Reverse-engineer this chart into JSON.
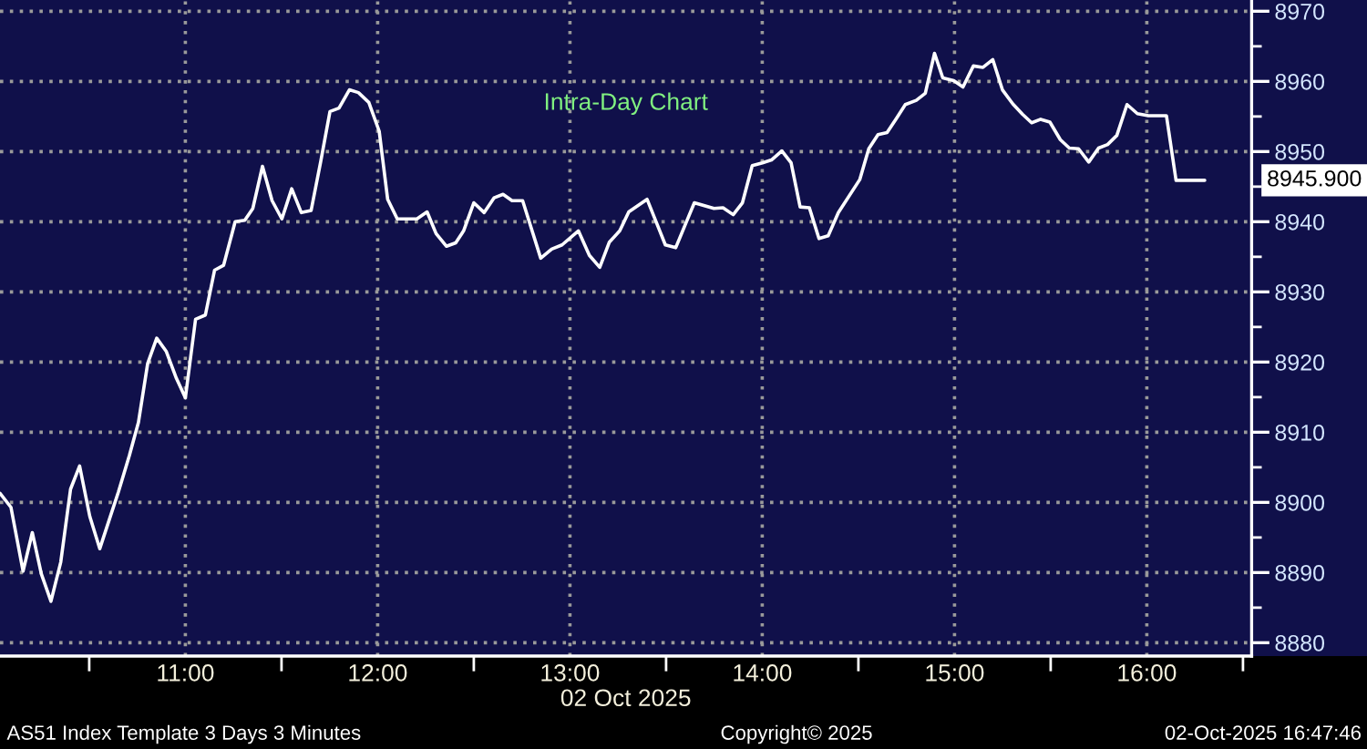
{
  "chart_data": {
    "type": "line",
    "title": "Intra-Day Chart",
    "xlabel": "02 Oct 2025",
    "x": [
      10.036,
      10.093,
      10.156,
      10.204,
      10.251,
      10.301,
      10.352,
      10.403,
      10.45,
      10.503,
      10.555,
      10.605,
      10.652,
      10.709,
      10.756,
      10.804,
      10.851,
      10.901,
      10.953,
      11.0,
      11.053,
      11.104,
      11.152,
      11.199,
      11.259,
      11.309,
      11.351,
      11.401,
      11.451,
      11.502,
      11.553,
      11.603,
      11.654,
      11.704,
      11.752,
      11.799,
      11.853,
      11.9,
      11.954,
      12.008,
      12.052,
      12.102,
      12.204,
      12.257,
      12.304,
      12.358,
      12.406,
      12.447,
      12.5,
      12.554,
      12.605,
      12.652,
      12.699,
      12.754,
      12.848,
      12.905,
      12.959,
      13.044,
      13.101,
      13.155,
      13.205,
      13.259,
      13.306,
      13.401,
      13.448,
      13.496,
      13.55,
      13.6,
      13.647,
      13.749,
      13.796,
      13.849,
      13.897,
      13.948,
      14.001,
      14.048,
      14.102,
      14.15,
      14.197,
      14.245,
      14.295,
      14.343,
      14.396,
      14.507,
      14.554,
      14.602,
      14.649,
      14.697,
      14.744,
      14.801,
      14.848,
      14.896,
      14.939,
      14.996,
      15.044,
      15.098,
      15.148,
      15.199,
      15.249,
      15.303,
      15.354,
      15.401,
      15.448,
      15.496,
      15.55,
      15.597,
      15.645,
      15.698,
      15.749,
      15.796,
      15.844,
      15.897,
      15.951,
      16.008,
      16.102,
      16.152,
      16.301
    ],
    "values": [
      8901.3,
      8899.3,
      8890.2,
      8895.7,
      8889.8,
      8885.9,
      8891.5,
      8901.9,
      8905.2,
      8898.0,
      8893.4,
      8897.6,
      8901.5,
      8906.7,
      8911.4,
      8919.8,
      8923.4,
      8921.5,
      8917.7,
      8914.9,
      8926.1,
      8926.7,
      8933.1,
      8933.8,
      8940.0,
      8940.2,
      8941.9,
      8947.9,
      8943.0,
      8940.4,
      8944.7,
      8941.3,
      8941.6,
      8948.6,
      8955.7,
      8956.2,
      8958.8,
      8958.4,
      8957.0,
      8952.9,
      8943.2,
      8940.4,
      8940.4,
      8941.4,
      8938.3,
      8936.5,
      8937.0,
      8938.7,
      8942.7,
      8941.3,
      8943.4,
      8943.9,
      8943.0,
      8943.0,
      8934.8,
      8936.1,
      8936.7,
      8938.7,
      8935.2,
      8933.5,
      8937.1,
      8938.7,
      8941.4,
      8943.2,
      8940.0,
      8936.7,
      8936.3,
      8939.6,
      8942.7,
      8941.9,
      8942.0,
      8941.0,
      8942.7,
      8948.0,
      8948.4,
      8948.8,
      8950.1,
      8948.4,
      8942.1,
      8942.0,
      8937.6,
      8938.0,
      8941.3,
      8946.0,
      8950.4,
      8952.4,
      8952.7,
      8954.7,
      8956.7,
      8957.3,
      8958.3,
      8964.0,
      8960.5,
      8960.1,
      8959.2,
      8962.2,
      8962.0,
      8963.1,
      8958.8,
      8956.8,
      8955.3,
      8954.1,
      8954.6,
      8954.2,
      8951.7,
      8950.5,
      8950.4,
      8948.5,
      8950.5,
      8951.0,
      8952.3,
      8956.7,
      8955.4,
      8955.1,
      8955.1,
      8945.9,
      8945.9
    ],
    "color": "#ffffff",
    "line_style": "solid",
    "xlim": [
      10.036,
      16.545
    ],
    "ylim": [
      8878.1,
      8971.6
    ],
    "xticks": [
      {
        "value": 10.5,
        "label": null
      },
      {
        "value": 11,
        "label": "11:00"
      },
      {
        "value": 11.5,
        "label": null
      },
      {
        "value": 12,
        "label": "12:00"
      },
      {
        "value": 12.5,
        "label": null
      },
      {
        "value": 13,
        "label": "13:00"
      },
      {
        "value": 13.5,
        "label": null
      },
      {
        "value": 14,
        "label": "14:00"
      },
      {
        "value": 14.5,
        "label": null
      },
      {
        "value": 15,
        "label": "15:00"
      },
      {
        "value": 15.5,
        "label": null
      },
      {
        "value": 16,
        "label": "16:00"
      },
      {
        "value": 16.5,
        "label": null
      }
    ],
    "yticks": [
      8880,
      {
        "value": 8885,
        "label": null
      },
      8890,
      {
        "value": 8895,
        "label": null
      },
      8900,
      {
        "value": 8905,
        "label": null
      },
      8910,
      {
        "value": 8915,
        "label": null
      },
      8920,
      {
        "value": 8925,
        "label": null
      },
      8930,
      {
        "value": 8935,
        "label": null
      },
      8940,
      {
        "value": 8945,
        "label": null
      },
      8950,
      {
        "value": 8955,
        "label": null
      },
      8960,
      {
        "value": 8965,
        "label": null
      },
      8970
    ],
    "grid": true,
    "annotations": [
      "8945.900",
      "AS51 Index Template 3 Days 3 Minutes",
      "Copyright© 2025",
      "02-Oct-2025 16:47:46"
    ]
  }
}
